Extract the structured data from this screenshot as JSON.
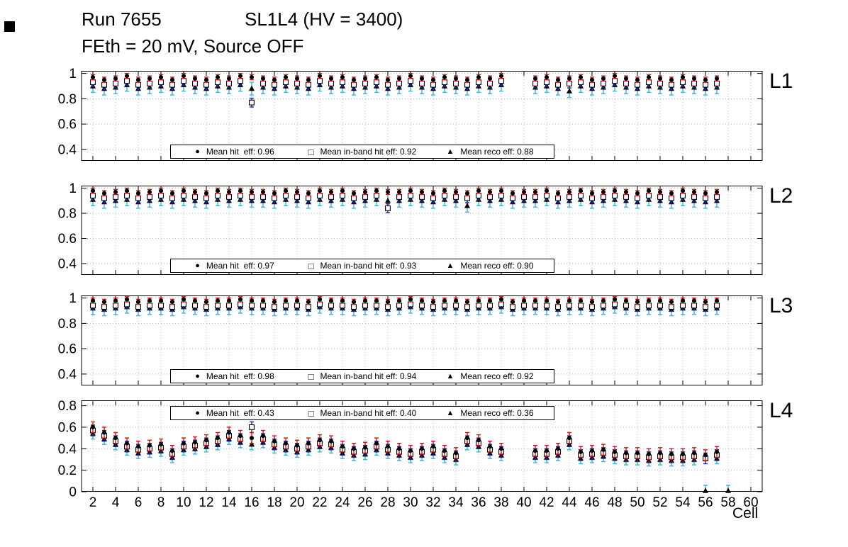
{
  "title": {
    "run": "Run 7655",
    "config": "SL1L4 (HV = 3400)",
    "line2": "FEth = 20 mV, Source OFF"
  },
  "marker_glyphs": {
    "hit": "●",
    "inband": "□",
    "reco": "▲"
  },
  "colors": {
    "marker": "#000000",
    "hit_err": "#dd1111",
    "inband_err": "#22229a",
    "reco_err": "#35b6d2"
  },
  "x_axis": {
    "label": "Cell",
    "min": 1,
    "max": 61,
    "ticks": [
      2,
      4,
      6,
      8,
      10,
      12,
      14,
      16,
      18,
      20,
      22,
      24,
      26,
      28,
      30,
      32,
      34,
      36,
      38,
      40,
      42,
      44,
      46,
      48,
      50,
      52,
      54,
      56,
      58,
      60
    ]
  },
  "cells": [
    2,
    3,
    4,
    5,
    6,
    7,
    8,
    9,
    10,
    11,
    12,
    13,
    14,
    15,
    16,
    17,
    18,
    19,
    20,
    21,
    22,
    23,
    24,
    25,
    26,
    27,
    28,
    29,
    30,
    31,
    32,
    33,
    34,
    35,
    36,
    37,
    38,
    39,
    40,
    41,
    42,
    43,
    44,
    45,
    46,
    47,
    48,
    49,
    50,
    51,
    52,
    53,
    54,
    55,
    56,
    57,
    58
  ],
  "chart_data": [
    {
      "type": "scatter",
      "panel": "L1",
      "ylim": [
        0.31,
        1.02
      ],
      "yticks": [
        0.4,
        0.6,
        0.8,
        1
      ],
      "legend_position": "bottom",
      "legend": {
        "hit": "Mean hit  eff: 0.96",
        "inband": "Mean in-band hit eff: 0.92",
        "reco": "Mean reco eff: 0.88"
      },
      "series": {
        "hit": {
          "err": 0.02,
          "values": [
            0.97,
            0.95,
            0.96,
            0.98,
            0.95,
            0.96,
            0.97,
            0.95,
            0.98,
            0.96,
            0.95,
            0.97,
            0.96,
            0.98,
            0.97,
            0.96,
            0.95,
            0.97,
            0.96,
            0.95,
            0.98,
            0.96,
            0.97,
            0.95,
            0.96,
            0.97,
            0.95,
            0.96,
            0.98,
            0.96,
            0.95,
            0.97,
            0.96,
            0.95,
            0.97,
            0.96,
            0.98,
            null,
            null,
            0.96,
            0.97,
            0.95,
            0.96,
            0.97,
            0.95,
            0.96,
            0.98,
            0.96,
            0.95,
            0.97,
            0.96,
            0.95,
            0.97,
            0.96,
            0.95,
            0.96,
            null
          ]
        },
        "inband": {
          "err": 0.035,
          "values": [
            0.93,
            0.91,
            0.92,
            0.94,
            0.91,
            0.92,
            0.93,
            0.91,
            0.94,
            0.92,
            0.91,
            0.93,
            0.92,
            0.94,
            0.77,
            0.92,
            0.91,
            0.93,
            0.92,
            0.91,
            0.94,
            0.92,
            0.93,
            0.91,
            0.92,
            0.93,
            0.91,
            0.92,
            0.94,
            0.92,
            0.91,
            0.93,
            0.92,
            0.91,
            0.93,
            0.92,
            0.94,
            null,
            null,
            0.92,
            0.93,
            0.91,
            0.92,
            0.93,
            0.91,
            0.92,
            0.94,
            0.92,
            0.91,
            0.93,
            0.92,
            0.91,
            0.93,
            0.92,
            0.91,
            0.92,
            null
          ]
        },
        "reco": {
          "err": 0.05,
          "values": [
            0.9,
            0.88,
            0.89,
            0.91,
            0.88,
            0.89,
            0.9,
            0.88,
            0.91,
            0.89,
            0.88,
            0.9,
            0.89,
            0.91,
            0.88,
            0.89,
            0.88,
            0.9,
            0.89,
            0.88,
            0.91,
            0.89,
            0.9,
            0.88,
            0.89,
            0.9,
            0.88,
            0.89,
            0.91,
            0.89,
            0.88,
            0.9,
            0.89,
            0.88,
            0.9,
            0.89,
            0.91,
            null,
            null,
            0.89,
            0.9,
            0.88,
            0.86,
            0.9,
            0.88,
            0.89,
            0.91,
            0.89,
            0.88,
            0.9,
            0.89,
            0.88,
            0.9,
            0.89,
            0.88,
            0.89,
            null
          ]
        }
      }
    },
    {
      "type": "scatter",
      "panel": "L2",
      "ylim": [
        0.31,
        1.02
      ],
      "yticks": [
        0.4,
        0.6,
        0.8,
        1
      ],
      "legend_position": "bottom",
      "legend": {
        "hit": "Mean hit  eff: 0.97",
        "inband": "Mean in-band hit eff: 0.93",
        "reco": "Mean reco eff: 0.90"
      },
      "series": {
        "hit": {
          "err": 0.02,
          "values": [
            0.98,
            0.96,
            0.97,
            0.98,
            0.96,
            0.97,
            0.98,
            0.96,
            0.98,
            0.97,
            0.96,
            0.98,
            0.97,
            0.98,
            0.97,
            0.97,
            0.96,
            0.98,
            0.97,
            0.96,
            0.98,
            0.97,
            0.98,
            0.96,
            0.97,
            0.98,
            0.97,
            0.97,
            0.98,
            0.97,
            0.96,
            0.98,
            0.97,
            0.96,
            0.98,
            0.97,
            0.98,
            0.96,
            0.97,
            0.97,
            0.98,
            0.96,
            0.97,
            0.98,
            0.96,
            0.97,
            0.98,
            0.97,
            0.96,
            0.98,
            0.97,
            0.96,
            0.98,
            0.97,
            0.96,
            0.97,
            null
          ]
        },
        "inband": {
          "err": 0.035,
          "values": [
            0.94,
            0.92,
            0.93,
            0.94,
            0.92,
            0.93,
            0.94,
            0.92,
            0.94,
            0.93,
            0.92,
            0.94,
            0.93,
            0.94,
            0.93,
            0.93,
            0.92,
            0.94,
            0.93,
            0.92,
            0.94,
            0.93,
            0.94,
            0.92,
            0.93,
            0.94,
            0.84,
            0.93,
            0.94,
            0.93,
            0.92,
            0.94,
            0.93,
            0.92,
            0.94,
            0.93,
            0.94,
            0.92,
            0.93,
            0.93,
            0.94,
            0.92,
            0.93,
            0.94,
            0.92,
            0.93,
            0.94,
            0.93,
            0.92,
            0.94,
            0.93,
            0.92,
            0.94,
            0.93,
            0.92,
            0.93,
            null
          ]
        },
        "reco": {
          "err": 0.05,
          "values": [
            0.91,
            0.89,
            0.9,
            0.91,
            0.89,
            0.9,
            0.91,
            0.89,
            0.91,
            0.9,
            0.89,
            0.91,
            0.9,
            0.91,
            0.9,
            0.9,
            0.89,
            0.91,
            0.9,
            0.89,
            0.91,
            0.9,
            0.91,
            0.89,
            0.9,
            0.91,
            0.9,
            0.9,
            0.91,
            0.9,
            0.89,
            0.91,
            0.9,
            0.86,
            0.91,
            0.9,
            0.91,
            0.89,
            0.9,
            0.9,
            0.91,
            0.89,
            0.9,
            0.91,
            0.89,
            0.9,
            0.91,
            0.9,
            0.89,
            0.91,
            0.9,
            0.89,
            0.91,
            0.9,
            0.89,
            0.9,
            null
          ]
        }
      }
    },
    {
      "type": "scatter",
      "panel": "L3",
      "ylim": [
        0.31,
        1.02
      ],
      "yticks": [
        0.4,
        0.6,
        0.8,
        1
      ],
      "legend_position": "bottom",
      "legend": {
        "hit": "Mean hit  eff: 0.98",
        "inband": "Mean in-band hit eff: 0.94",
        "reco": "Mean reco eff: 0.92"
      },
      "series": {
        "hit": {
          "err": 0.02,
          "values": [
            0.98,
            0.97,
            0.98,
            0.99,
            0.97,
            0.98,
            0.98,
            0.97,
            0.99,
            0.98,
            0.97,
            0.98,
            0.98,
            0.99,
            0.98,
            0.98,
            0.97,
            0.98,
            0.98,
            0.97,
            0.99,
            0.98,
            0.98,
            0.97,
            0.98,
            0.98,
            0.97,
            0.98,
            0.99,
            0.98,
            0.97,
            0.98,
            0.98,
            0.97,
            0.98,
            0.98,
            0.99,
            0.97,
            0.98,
            0.98,
            0.98,
            0.97,
            0.98,
            0.98,
            0.97,
            0.98,
            0.99,
            0.98,
            0.97,
            0.98,
            0.98,
            0.97,
            0.98,
            0.98,
            0.97,
            0.98,
            null
          ]
        },
        "inband": {
          "err": 0.035,
          "values": [
            0.94,
            0.93,
            0.94,
            0.95,
            0.93,
            0.94,
            0.94,
            0.93,
            0.95,
            0.94,
            0.93,
            0.94,
            0.94,
            0.95,
            0.94,
            0.94,
            0.93,
            0.94,
            0.94,
            0.93,
            0.95,
            0.94,
            0.94,
            0.93,
            0.94,
            0.94,
            0.93,
            0.94,
            0.95,
            0.94,
            0.93,
            0.94,
            0.94,
            0.93,
            0.94,
            0.94,
            0.95,
            0.93,
            0.94,
            0.94,
            0.94,
            0.93,
            0.94,
            0.94,
            0.93,
            0.94,
            0.95,
            0.94,
            0.93,
            0.94,
            0.94,
            0.93,
            0.94,
            0.94,
            0.93,
            0.94,
            null
          ]
        },
        "reco": {
          "err": 0.05,
          "values": [
            0.92,
            0.91,
            0.92,
            0.93,
            0.91,
            0.92,
            0.92,
            0.91,
            0.93,
            0.92,
            0.91,
            0.92,
            0.92,
            0.93,
            0.92,
            0.92,
            0.91,
            0.92,
            0.92,
            0.91,
            0.93,
            0.92,
            0.92,
            0.91,
            0.92,
            0.92,
            0.91,
            0.92,
            0.93,
            0.92,
            0.91,
            0.92,
            0.92,
            0.91,
            0.92,
            0.92,
            0.93,
            0.91,
            0.92,
            0.92,
            0.92,
            0.91,
            0.92,
            0.92,
            0.91,
            0.92,
            0.93,
            0.92,
            0.91,
            0.92,
            0.92,
            0.91,
            0.92,
            0.92,
            0.91,
            0.92,
            null
          ]
        }
      }
    },
    {
      "type": "scatter",
      "panel": "L4",
      "ylim": [
        0,
        0.85
      ],
      "yticks": [
        0,
        0.2,
        0.4,
        0.6,
        0.8
      ],
      "legend_position": "top",
      "legend": {
        "hit": "Mean hit  eff: 0.43",
        "inband": "Mean in-band hit eff: 0.40",
        "reco": "Mean reco eff: 0.36"
      },
      "series": {
        "hit": {
          "err": 0.05,
          "values": [
            0.6,
            0.55,
            0.5,
            0.45,
            0.42,
            0.43,
            0.44,
            0.38,
            0.45,
            0.46,
            0.48,
            0.5,
            0.55,
            0.52,
            0.5,
            0.52,
            0.47,
            0.45,
            0.43,
            0.45,
            0.48,
            0.47,
            0.42,
            0.4,
            0.41,
            0.45,
            0.42,
            0.4,
            0.38,
            0.4,
            0.42,
            0.38,
            0.36,
            0.5,
            0.48,
            0.42,
            0.4,
            null,
            null,
            0.38,
            0.38,
            0.4,
            0.5,
            0.37,
            0.38,
            0.39,
            0.37,
            0.36,
            0.36,
            0.35,
            0.36,
            0.35,
            0.35,
            0.36,
            0.34,
            0.37,
            null
          ]
        },
        "inband": {
          "err": 0.05,
          "values": [
            0.57,
            0.52,
            0.47,
            0.42,
            0.39,
            0.4,
            0.41,
            0.35,
            0.42,
            0.43,
            0.45,
            0.47,
            0.52,
            0.49,
            0.6,
            0.49,
            0.44,
            0.42,
            0.4,
            0.42,
            0.45,
            0.44,
            0.39,
            0.37,
            0.38,
            0.42,
            0.39,
            0.37,
            0.35,
            0.37,
            0.39,
            0.35,
            0.33,
            0.47,
            0.45,
            0.39,
            0.37,
            null,
            null,
            0.35,
            0.35,
            0.37,
            0.47,
            0.34,
            0.35,
            0.36,
            0.34,
            0.33,
            0.33,
            0.32,
            0.33,
            0.32,
            0.32,
            0.33,
            0.31,
            0.34,
            null
          ]
        },
        "reco": {
          "err": 0.05,
          "values": [
            0.54,
            0.49,
            0.44,
            0.39,
            0.36,
            0.37,
            0.38,
            0.32,
            0.39,
            0.4,
            0.42,
            0.44,
            0.49,
            0.46,
            0.44,
            0.46,
            0.41,
            0.39,
            0.37,
            0.39,
            0.42,
            0.41,
            0.36,
            0.34,
            0.35,
            0.39,
            0.36,
            0.34,
            0.32,
            0.34,
            0.36,
            0.32,
            0.3,
            0.44,
            0.42,
            0.36,
            0.34,
            null,
            null,
            0.32,
            0.32,
            0.34,
            0.44,
            0.31,
            0.32,
            0.33,
            0.31,
            0.3,
            0.3,
            0.29,
            0.3,
            0.29,
            0.29,
            0.3,
            0.01,
            0.31,
            0.01
          ]
        }
      }
    }
  ]
}
